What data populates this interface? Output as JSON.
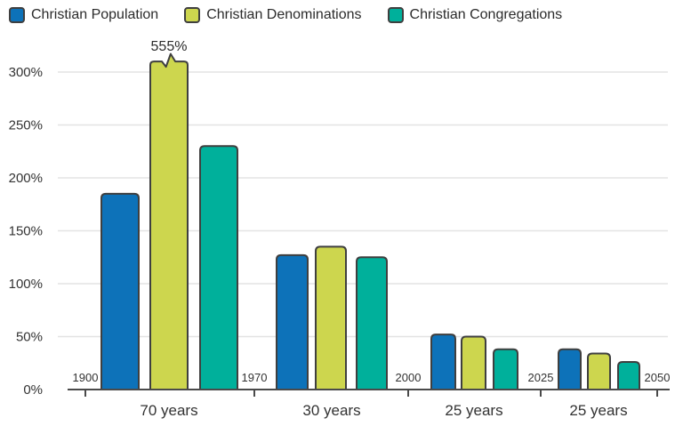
{
  "legend": {
    "items": [
      {
        "label": "Christian Population",
        "color": "#0d72b9",
        "icon": "blue-square-swatch-icon"
      },
      {
        "label": "Christian Denominations",
        "color": "#cdd64e",
        "icon": "yellow-square-swatch-icon"
      },
      {
        "label": "Christian Congregations",
        "color": "#00b09b",
        "icon": "teal-square-swatch-icon"
      }
    ]
  },
  "chart_data": {
    "type": "bar",
    "title": "",
    "categories": [
      "70 years",
      "30 years",
      "25 years",
      "25 years"
    ],
    "era_tick_labels": [
      "1900",
      "1970",
      "2000",
      "2025",
      "2050"
    ],
    "series": [
      {
        "name": "Christian Population",
        "color": "#0d72b9",
        "values": [
          185,
          127,
          52,
          38
        ]
      },
      {
        "name": "Christian Denominations",
        "color": "#cdd64e",
        "values": [
          555,
          135,
          50,
          34
        ],
        "display_cap": {
          "group": 0,
          "actual_value": 555,
          "shown_height_pct": 310,
          "annotation": "555%",
          "break_marker": true
        }
      },
      {
        "name": "Christian Congregations",
        "color": "#00b09b",
        "values": [
          230,
          125,
          38,
          26
        ]
      }
    ],
    "y_ticks": [
      {
        "value": 0,
        "label": "0%"
      },
      {
        "value": 50,
        "label": "50%"
      },
      {
        "value": 100,
        "label": "100%"
      },
      {
        "value": 150,
        "label": "150%"
      },
      {
        "value": 200,
        "label": "200%"
      },
      {
        "value": 250,
        "label": "250%"
      },
      {
        "value": 300,
        "label": "300%"
      }
    ],
    "ylim": [
      0,
      310
    ],
    "grid": "horizontal-only",
    "legend_position": "top-left",
    "colors": {
      "axis_line": "#4a4a4a",
      "gridline": "#e3e3e3",
      "bar_outline": "#3f3f3f",
      "text": "#333333"
    }
  }
}
